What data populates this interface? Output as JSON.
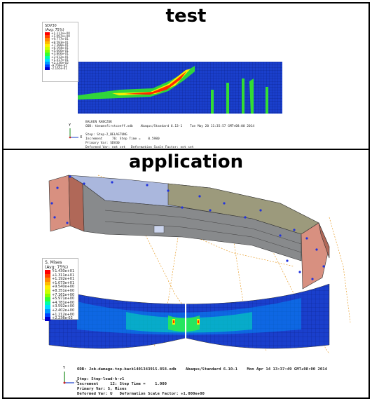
{
  "titles": {
    "top": "test",
    "bottom": "application"
  },
  "top_panel": {
    "legend": {
      "title": "SDV30\n(Avg: 75%)",
      "values": [
        "+1.217e+00",
        "+1.097e+00",
        "+9.777e-01",
        "+8.583e-01",
        "+7.388e-01",
        "+6.194e-01",
        "+5.000e-01",
        "+3.806e-01",
        "+2.612e-01",
        "+1.417e-01",
        "+2.230e-02",
        "-9.709e-02",
        "-2.165e-01"
      ],
      "colors": [
        "#ff0000",
        "#ff4400",
        "#ff8800",
        "#ffbb00",
        "#ffee00",
        "#ccff00",
        "#88ff00",
        "#33ff33",
        "#00ffaa",
        "#00ddff",
        "#0099ff",
        "#0044ff",
        "#0000cc"
      ]
    },
    "info_lines": [
      "BALKEN RABCZUK",
      "ODB: tbeamsfirstcoeff.odb    Abaqus/Standard 6.13-1    Tue May 20 11:35:57 GMT+08:00 2014",
      "",
      "Step: Step-2_BELASTUNG",
      "Increment     76: Step Time =    0.5980",
      "Primary Var: SDV30",
      "Deformed Var: not set   Deformation Scale Factor: not set"
    ],
    "triad": {
      "y": "Y",
      "x": "X"
    }
  },
  "bottom_panel": {
    "legend": {
      "title": "S, Mises\n(Avg: 75%)",
      "values": [
        "+1.430e+01",
        "+1.311e+01",
        "+1.192e+01",
        "+1.073e+01",
        "+9.540e+00",
        "+8.351e+00",
        "+7.161e+00",
        "+5.971e+00",
        "+4.781e+00",
        "+3.592e+00",
        "+2.402e+00",
        "+1.212e+00",
        "+2.236e-02"
      ],
      "colors": [
        "#ff0000",
        "#ff4400",
        "#ff8800",
        "#ffbb00",
        "#ffee00",
        "#ccff00",
        "#88ff00",
        "#33ff33",
        "#00ffaa",
        "#00ddff",
        "#0099ff",
        "#0044ff",
        "#0000cc"
      ]
    },
    "info_lines": [
      "ODB: Job-damage-top-back1401343915.858.odb    Abaqus/Standard 6.10-1    Mon Apr 14 13:37:49 GMT+08:00 2014",
      "",
      "Step: Step-load-h-v1",
      "Increment     12: Step Time =    1.000",
      "Primary Var: S, Mises",
      "Deformed Var: U   Deformation Scale Factor: +1.000e+00"
    ],
    "triad": {
      "y": "Y",
      "x": "X"
    }
  },
  "colors": {
    "mesh_blue": "#1a3fcc",
    "mesh_green": "#33dd33",
    "mesh_yellow": "#ffee00",
    "mesh_red": "#ff2a00",
    "beam_light": "#aab7dd",
    "beam_gray": "#888a8c",
    "beam_olive": "#9c9a7c",
    "support_brown": "#d89080",
    "rebar_orange": "#e8a030"
  }
}
